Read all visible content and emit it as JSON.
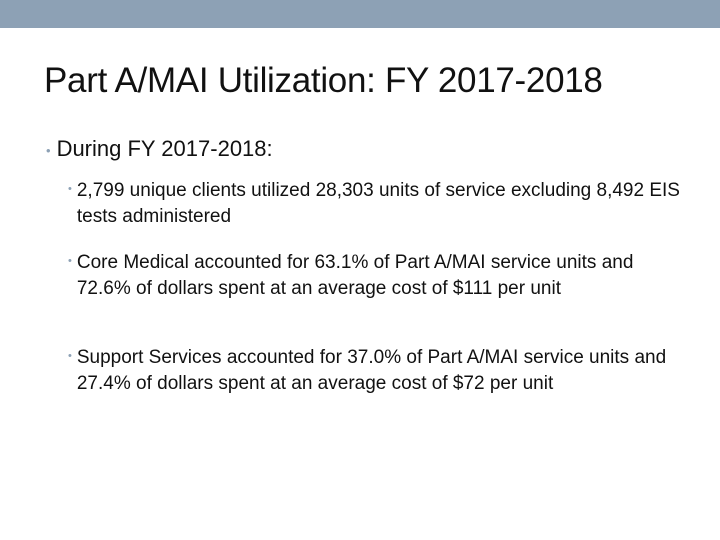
{
  "slide": {
    "title": "Part A/MAI Utilization: FY 2017-2018",
    "accent_color": "#8da1b5",
    "bullet_icon": "round-bullet",
    "main_bullet": "During FY 2017-2018:",
    "sub_bullets": [
      "2,799 unique clients utilized 28,303 units of service excluding 8,492 EIS tests administered",
      "Core Medical accounted for 63.1% of Part A/MAI service units and 72.6% of dollars spent at an average cost of $111 per unit",
      "Support Services accounted for 37.0% of Part A/MAI service units and 27.4% of dollars spent at an average cost of $72 per unit"
    ]
  }
}
